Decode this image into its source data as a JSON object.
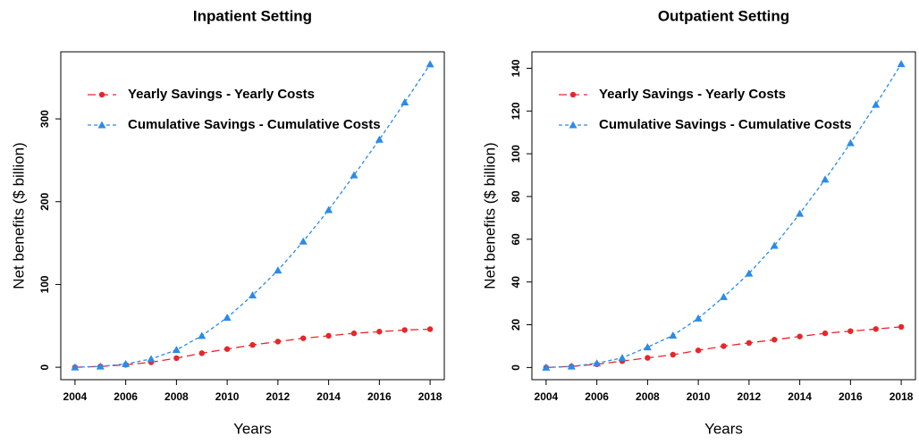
{
  "chart_data": [
    {
      "type": "line",
      "title": "Inpatient Setting",
      "x_label": "Years",
      "y_label": "Net benefits ($ billion)",
      "x": [
        2004,
        2005,
        2006,
        2007,
        2008,
        2009,
        2010,
        2011,
        2012,
        2013,
        2014,
        2015,
        2016,
        2017,
        2018
      ],
      "series": [
        {
          "name": "Yearly Savings - Yearly Costs",
          "color": "#e8262a",
          "marker": "circle",
          "values": [
            0,
            1,
            3,
            6,
            11,
            17,
            22,
            27,
            31,
            35,
            38,
            41,
            43,
            45,
            46
          ]
        },
        {
          "name": "Cumulative Savings - Cumulative Costs",
          "color": "#2a8be8",
          "marker": "triangle",
          "values": [
            0,
            1,
            4,
            10,
            21,
            38,
            60,
            87,
            117,
            152,
            190,
            232,
            275,
            320,
            366
          ]
        }
      ],
      "xlim": [
        2003.44,
        2018.56
      ],
      "ylim": [
        -15,
        381
      ],
      "xticks": [
        2004,
        2006,
        2008,
        2010,
        2012,
        2014,
        2016,
        2018
      ],
      "yticks": [
        0,
        100,
        200,
        300
      ],
      "legend": "topleft"
    },
    {
      "type": "line",
      "title": "Outpatient Setting",
      "x_label": "Years",
      "y_label": "Net benefits ($ billion)",
      "x": [
        2004,
        2005,
        2006,
        2007,
        2008,
        2009,
        2010,
        2011,
        2012,
        2013,
        2014,
        2015,
        2016,
        2017,
        2018
      ],
      "series": [
        {
          "name": "Yearly Savings - Yearly Costs",
          "color": "#e8262a",
          "marker": "circle",
          "values": [
            0,
            0.5,
            1.5,
            3,
            4.5,
            6,
            8,
            10,
            11.5,
            13,
            14.5,
            16,
            17,
            18,
            19
          ]
        },
        {
          "name": "Cumulative Savings - Cumulative Costs",
          "color": "#2a8be8",
          "marker": "triangle",
          "values": [
            0,
            0.5,
            2,
            4.5,
            9.5,
            15,
            23,
            33,
            44,
            57,
            72,
            88,
            105,
            123,
            142
          ]
        }
      ],
      "xlim": [
        2003.44,
        2018.56
      ],
      "ylim": [
        -5.7,
        147.7
      ],
      "xticks": [
        2004,
        2006,
        2008,
        2010,
        2012,
        2014,
        2016,
        2018
      ],
      "yticks": [
        0,
        20,
        40,
        60,
        80,
        100,
        120,
        140
      ],
      "legend": "topleft"
    }
  ]
}
